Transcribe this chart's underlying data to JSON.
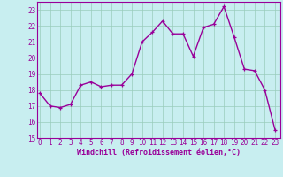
{
  "x": [
    0,
    1,
    2,
    3,
    4,
    5,
    6,
    7,
    8,
    9,
    10,
    11,
    12,
    13,
    14,
    15,
    16,
    17,
    18,
    19,
    20,
    21,
    22,
    23
  ],
  "y": [
    17.8,
    17.0,
    16.9,
    17.1,
    18.3,
    18.5,
    18.2,
    18.3,
    18.3,
    19.0,
    21.0,
    21.6,
    22.3,
    21.5,
    21.5,
    20.1,
    21.9,
    22.1,
    23.2,
    21.3,
    19.3,
    19.2,
    18.0,
    15.5
  ],
  "ylim": [
    15,
    23.5
  ],
  "xlim": [
    -0.3,
    23.5
  ],
  "yticks": [
    15,
    16,
    17,
    18,
    19,
    20,
    21,
    22,
    23
  ],
  "xticks": [
    0,
    1,
    2,
    3,
    4,
    5,
    6,
    7,
    8,
    9,
    10,
    11,
    12,
    13,
    14,
    15,
    16,
    17,
    18,
    19,
    20,
    21,
    22,
    23
  ],
  "line_color": "#990099",
  "marker_color": "#990099",
  "bg_color": "#c8eef0",
  "grid_color": "#99ccbb",
  "xlabel": "Windchill (Refroidissement éolien,°C)",
  "xlabel_color": "#990099",
  "tick_label_color": "#990099",
  "axis_color": "#990099",
  "tick_fontsize": 5.5,
  "xlabel_fontsize": 6.0,
  "linewidth": 1.0,
  "markersize": 2.5
}
